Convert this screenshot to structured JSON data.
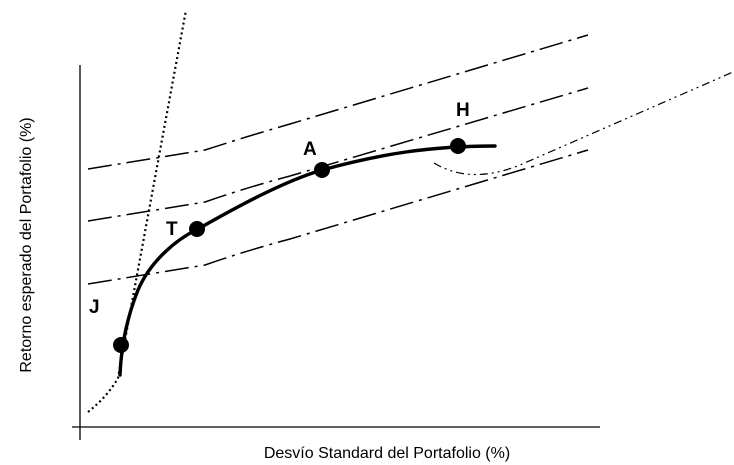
{
  "diagram": {
    "xlabel": "Desvío Standard del Portafolio (%)",
    "ylabel": "Retorno esperado del Portafolio (%)",
    "points": [
      {
        "id": "J",
        "label": "J"
      },
      {
        "id": "T",
        "label": "T"
      },
      {
        "id": "A",
        "label": "A"
      },
      {
        "id": "H",
        "label": "H"
      }
    ]
  }
}
